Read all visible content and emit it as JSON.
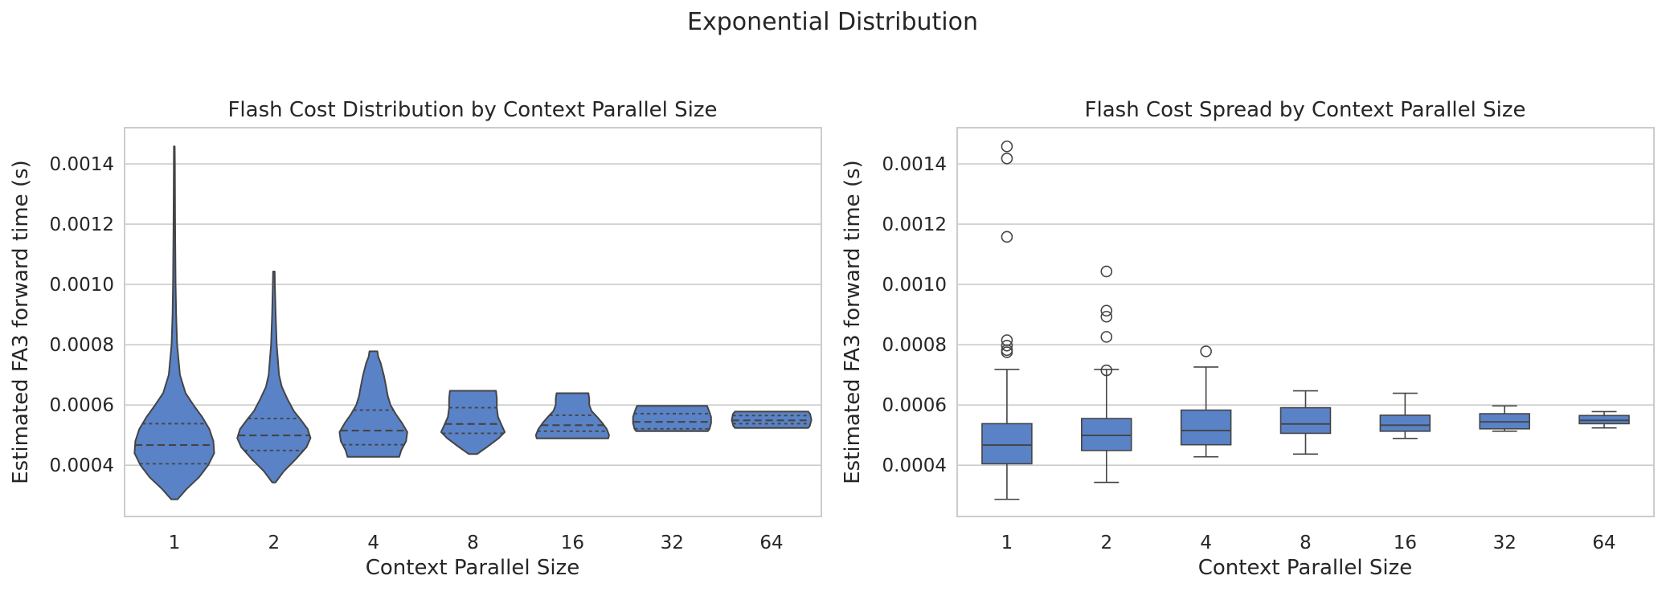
{
  "figure": {
    "suptitle": "Exponential Distribution"
  },
  "colors": {
    "fill": "#5a82c6",
    "edge": "#444444",
    "grid": "#cccccc",
    "text": "#262626"
  },
  "chart_data": [
    {
      "type": "violin",
      "title": "Flash Cost Distribution by Context Parallel Size",
      "xlabel": "Context Parallel Size",
      "ylabel": "Estimated FA3 forward time (s)",
      "categories": [
        "1",
        "2",
        "4",
        "8",
        "16",
        "32",
        "64"
      ],
      "ylim": [
        0.00023,
        0.00152
      ],
      "yticks": [
        0.0004,
        0.0006,
        0.0008,
        0.001,
        0.0012,
        0.0014
      ],
      "ytick_labels": [
        "0.0004",
        "0.0006",
        "0.0008",
        "0.0010",
        "0.0012",
        "0.0014"
      ],
      "grid": true,
      "inner": "quartile",
      "violins": [
        {
          "category": "1",
          "min": 0.000287,
          "q1": 0.000405,
          "median": 0.000467,
          "q3": 0.000538,
          "max": 0.001458,
          "density": [
            [
              0.000287,
              0.08
            ],
            [
              0.00032,
              0.3
            ],
            [
              0.00036,
              0.62
            ],
            [
              0.0004,
              0.85
            ],
            [
              0.00044,
              1.0
            ],
            [
              0.00048,
              0.98
            ],
            [
              0.00052,
              0.88
            ],
            [
              0.00056,
              0.7
            ],
            [
              0.0006,
              0.48
            ],
            [
              0.00064,
              0.28
            ],
            [
              0.0007,
              0.14
            ],
            [
              0.0008,
              0.07
            ],
            [
              0.0009,
              0.045
            ],
            [
              0.001,
              0.032
            ],
            [
              0.0012,
              0.02
            ],
            [
              0.0014,
              0.013
            ],
            [
              0.001458,
              0.01
            ]
          ]
        },
        {
          "category": "2",
          "min": 0.000343,
          "q1": 0.000449,
          "median": 0.000499,
          "q3": 0.000555,
          "max": 0.001043,
          "density": [
            [
              0.000343,
              0.04
            ],
            [
              0.00038,
              0.25
            ],
            [
              0.00042,
              0.55
            ],
            [
              0.00046,
              0.82
            ],
            [
              0.00049,
              0.92
            ],
            [
              0.00052,
              0.85
            ],
            [
              0.00055,
              0.68
            ],
            [
              0.00058,
              0.5
            ],
            [
              0.00062,
              0.34
            ],
            [
              0.00066,
              0.2
            ],
            [
              0.0007,
              0.13
            ],
            [
              0.0008,
              0.07
            ],
            [
              0.0009,
              0.045
            ],
            [
              0.001,
              0.025
            ],
            [
              0.001043,
              0.02
            ]
          ]
        },
        {
          "category": "4",
          "min": 0.000428,
          "q1": 0.000468,
          "median": 0.000515,
          "q3": 0.000583,
          "max": 0.000778,
          "density": [
            [
              0.000428,
              0.65
            ],
            [
              0.00045,
              0.7
            ],
            [
              0.00048,
              0.82
            ],
            [
              0.00051,
              0.85
            ],
            [
              0.00054,
              0.72
            ],
            [
              0.00057,
              0.56
            ],
            [
              0.0006,
              0.43
            ],
            [
              0.00063,
              0.36
            ],
            [
              0.00066,
              0.32
            ],
            [
              0.0007,
              0.26
            ],
            [
              0.00074,
              0.18
            ],
            [
              0.00076,
              0.12
            ],
            [
              0.000778,
              0.1
            ]
          ]
        },
        {
          "category": "8",
          "min": 0.000437,
          "q1": 0.000506,
          "median": 0.000537,
          "q3": 0.000591,
          "max": 0.000647,
          "density": [
            [
              0.000437,
              0.1
            ],
            [
              0.00046,
              0.35
            ],
            [
              0.00049,
              0.65
            ],
            [
              0.00051,
              0.8
            ],
            [
              0.00053,
              0.73
            ],
            [
              0.00056,
              0.63
            ],
            [
              0.00059,
              0.6
            ],
            [
              0.00062,
              0.6
            ],
            [
              0.000647,
              0.58
            ]
          ]
        },
        {
          "category": "16",
          "min": 0.000489,
          "q1": 0.000513,
          "median": 0.000533,
          "q3": 0.000566,
          "max": 0.000639,
          "density": [
            [
              0.000489,
              0.9
            ],
            [
              0.0005,
              0.92
            ],
            [
              0.00052,
              0.86
            ],
            [
              0.00054,
              0.75
            ],
            [
              0.00056,
              0.62
            ],
            [
              0.00058,
              0.48
            ],
            [
              0.0006,
              0.42
            ],
            [
              0.00062,
              0.42
            ],
            [
              0.000639,
              0.4
            ]
          ]
        },
        {
          "category": "32",
          "min": 0.000513,
          "q1": 0.000521,
          "median": 0.000544,
          "q3": 0.000571,
          "max": 0.000597,
          "density": [
            [
              0.000513,
              0.9
            ],
            [
              0.00052,
              0.94
            ],
            [
              0.00054,
              0.98
            ],
            [
              0.00056,
              0.98
            ],
            [
              0.00058,
              0.93
            ],
            [
              0.000597,
              0.88
            ]
          ]
        },
        {
          "category": "64",
          "min": 0.000524,
          "q1": 0.000538,
          "median": 0.000549,
          "q3": 0.000565,
          "max": 0.000578,
          "density": [
            [
              0.000524,
              0.92
            ],
            [
              0.00053,
              0.96
            ],
            [
              0.00055,
              1.0
            ],
            [
              0.00057,
              0.97
            ],
            [
              0.000578,
              0.92
            ]
          ]
        }
      ]
    },
    {
      "type": "box",
      "title": "Flash Cost Spread by Context Parallel Size",
      "xlabel": "Context Parallel Size",
      "ylabel": "Estimated FA3 forward time (s)",
      "categories": [
        "1",
        "2",
        "4",
        "8",
        "16",
        "32",
        "64"
      ],
      "ylim": [
        0.00023,
        0.00152
      ],
      "yticks": [
        0.0004,
        0.0006,
        0.0008,
        0.001,
        0.0012,
        0.0014
      ],
      "ytick_labels": [
        "0.0004",
        "0.0006",
        "0.0008",
        "0.0010",
        "0.0012",
        "0.0014"
      ],
      "grid": true,
      "boxes": [
        {
          "category": "1",
          "whislo": 0.000287,
          "q1": 0.000405,
          "median": 0.000467,
          "q3": 0.000538,
          "whishi": 0.000718,
          "fliers": [
            0.000775,
            0.000782,
            0.000797,
            0.000815,
            0.001158,
            0.001418,
            0.001458
          ]
        },
        {
          "category": "2",
          "whislo": 0.000343,
          "q1": 0.000449,
          "median": 0.000499,
          "q3": 0.000555,
          "whishi": 0.000718,
          "fliers": [
            0.000715,
            0.000826,
            0.000893,
            0.000913,
            0.001043
          ]
        },
        {
          "category": "4",
          "whislo": 0.000428,
          "q1": 0.000468,
          "median": 0.000515,
          "q3": 0.000583,
          "whishi": 0.000726,
          "fliers": [
            0.000778
          ]
        },
        {
          "category": "8",
          "whislo": 0.000437,
          "q1": 0.000506,
          "median": 0.000537,
          "q3": 0.000591,
          "whishi": 0.000647,
          "fliers": []
        },
        {
          "category": "16",
          "whislo": 0.000489,
          "q1": 0.000513,
          "median": 0.000533,
          "q3": 0.000566,
          "whishi": 0.000639,
          "fliers": []
        },
        {
          "category": "32",
          "whislo": 0.000513,
          "q1": 0.000521,
          "median": 0.000544,
          "q3": 0.000571,
          "whishi": 0.000597,
          "fliers": []
        },
        {
          "category": "64",
          "whislo": 0.000524,
          "q1": 0.000538,
          "median": 0.000549,
          "q3": 0.000565,
          "whishi": 0.000578,
          "fliers": []
        }
      ]
    }
  ]
}
